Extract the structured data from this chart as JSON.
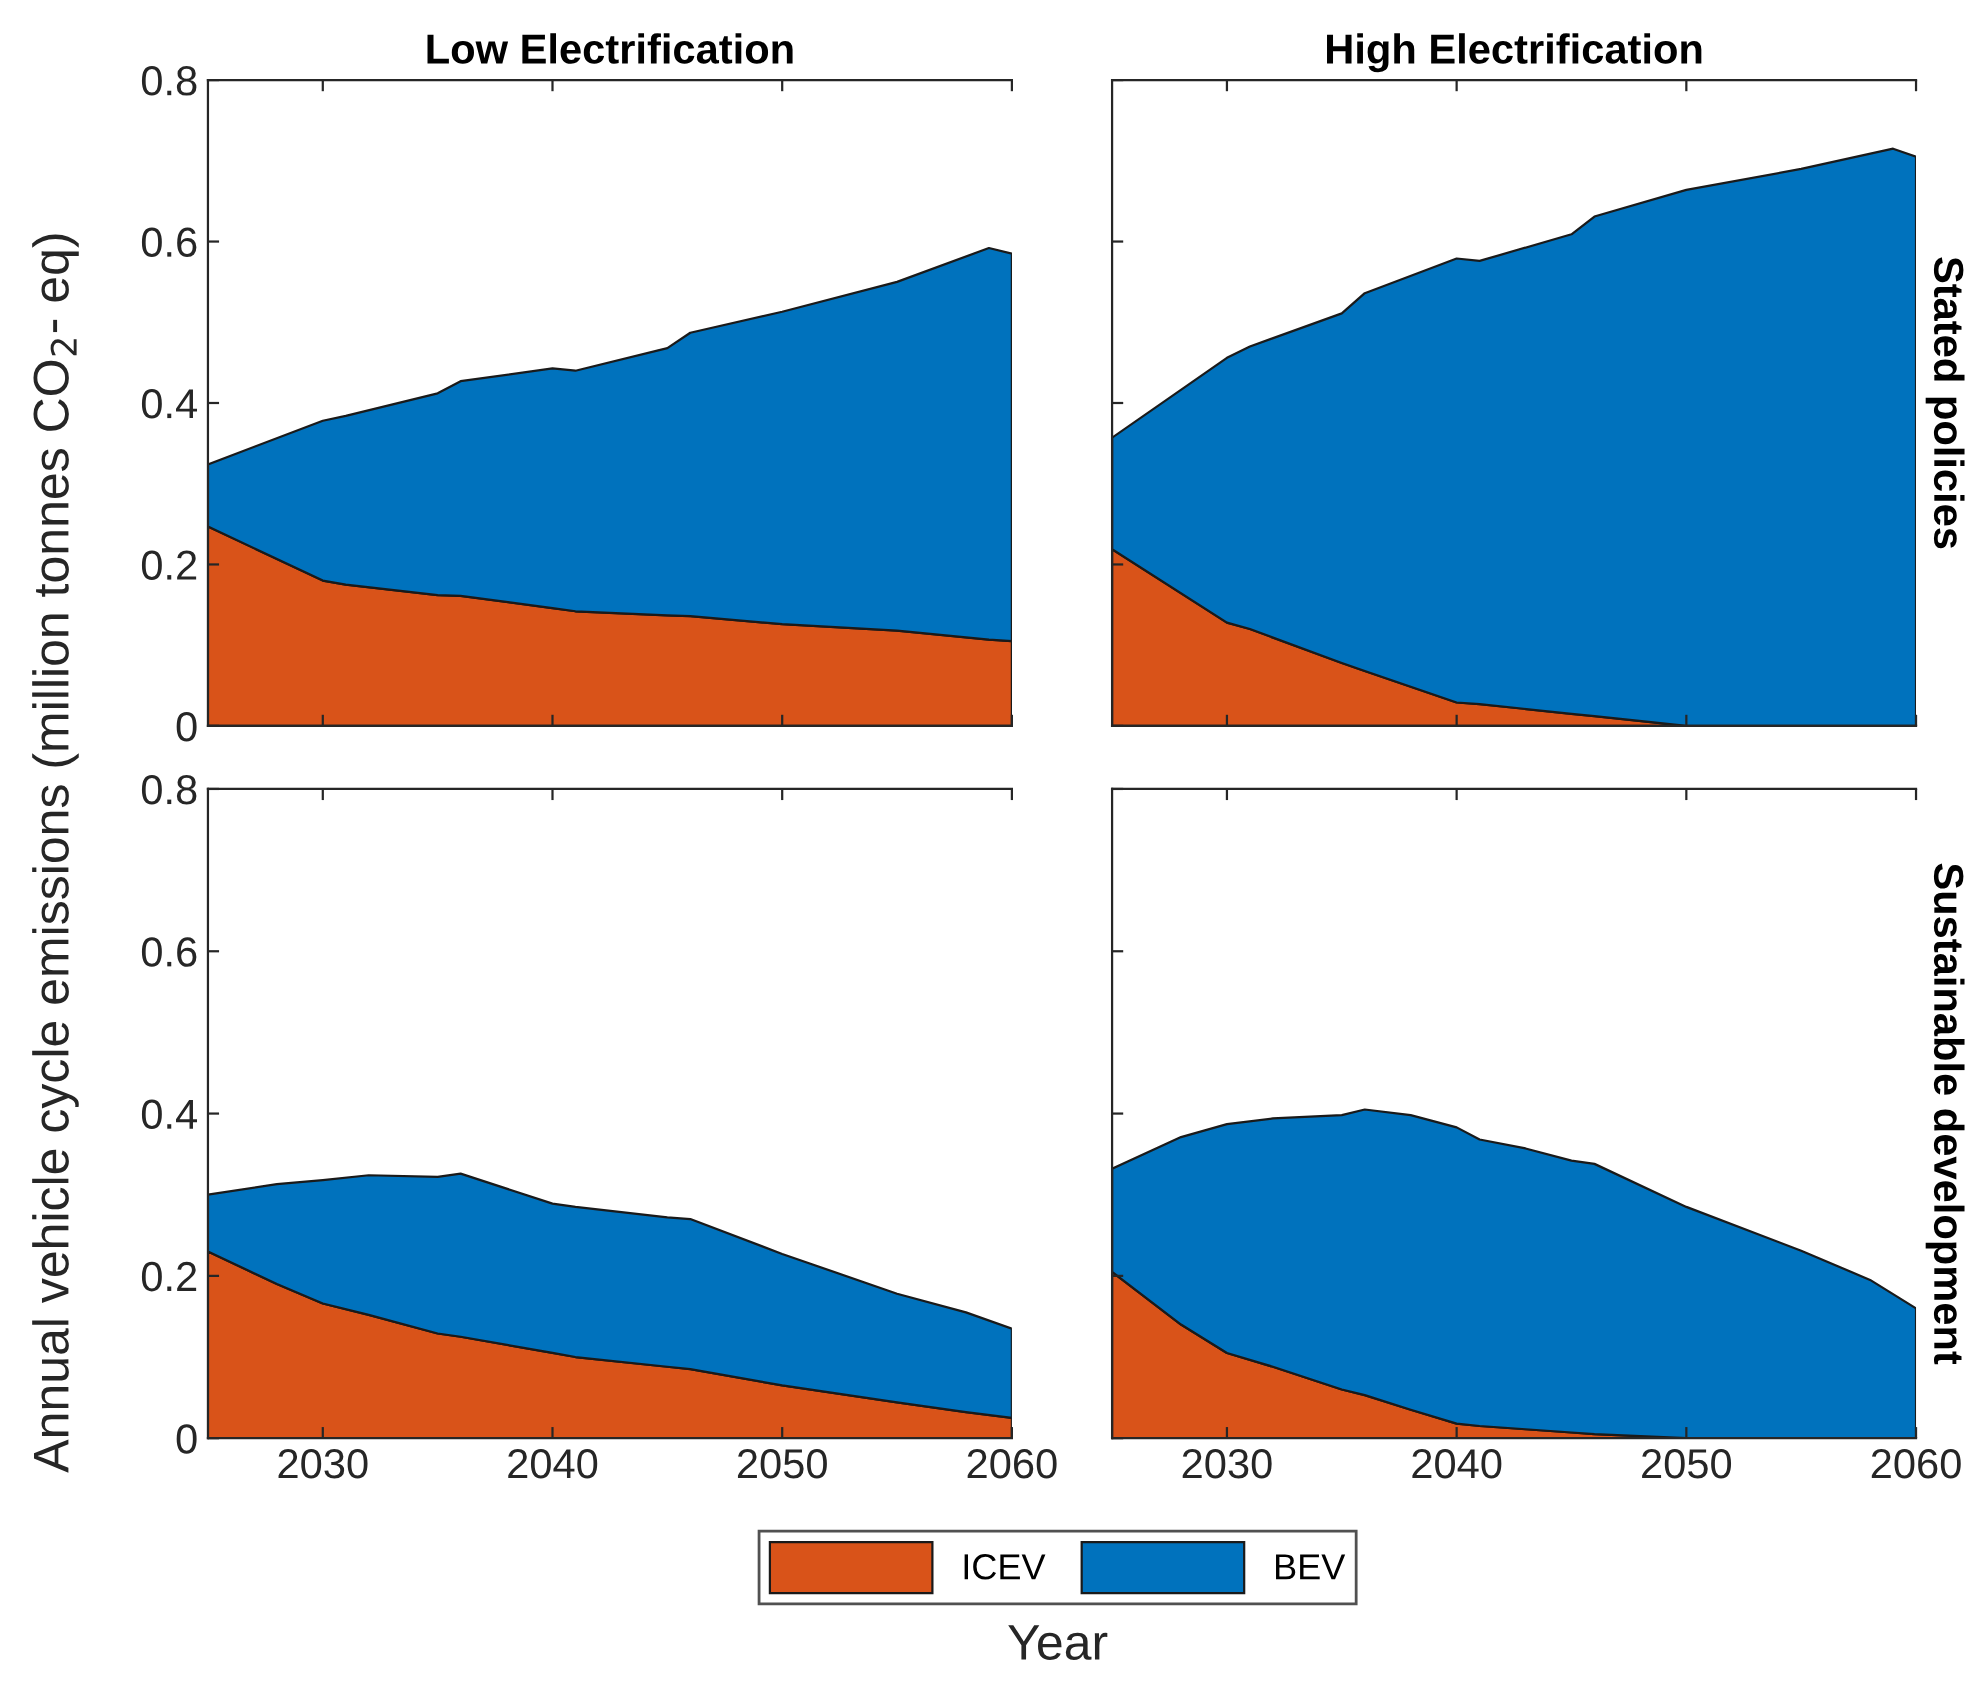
{
  "chart_data": [
    {
      "type": "area",
      "stacked": true,
      "title": "Low Electrification",
      "ylabel": "Annual vehicle cycle emissions (million tonnes CO$_{2}$- eq)",
      "legend": "bottom",
      "tick_labels": "y",
      "x": [
        2025,
        2030,
        2031,
        2035,
        2036,
        2040,
        2041,
        2045,
        2046,
        2050,
        2055,
        2059,
        2060
      ],
      "series": [
        {
          "name": "ICEV",
          "color": "#d95319",
          "values": [
            0.247,
            0.18,
            0.175,
            0.162,
            0.161,
            0.146,
            0.142,
            0.137,
            0.136,
            0.126,
            0.118,
            0.107,
            0.105
          ]
        },
        {
          "name": "BEV",
          "color": "#0072bd",
          "values": [
            0.077,
            0.198,
            0.209,
            0.25,
            0.266,
            0.297,
            0.298,
            0.331,
            0.351,
            0.387,
            0.432,
            0.485,
            0.48
          ]
        }
      ],
      "xlim": [
        2025,
        2060
      ],
      "ylim": [
        0,
        0.8
      ],
      "xticks": [
        2030,
        2040,
        2050,
        2060
      ],
      "yticks": [
        0,
        0.2,
        0.4,
        0.6,
        0.8
      ]
    },
    {
      "type": "area",
      "stacked": true,
      "title": "High Electrification",
      "y2label": "Stated policies",
      "tick_labels": false,
      "x": [
        2025,
        2030,
        2031,
        2035,
        2036,
        2040,
        2041,
        2045,
        2046,
        2050,
        2055,
        2059,
        2060
      ],
      "series": [
        {
          "color": "#d95319",
          "values": [
            0.219,
            0.128,
            0.12,
            0.078,
            0.068,
            0.029,
            0.027,
            0.015,
            0.012,
            0,
            0,
            0,
            0
          ]
        },
        {
          "color": "#0072bd",
          "values": [
            0.138,
            0.328,
            0.35,
            0.433,
            0.468,
            0.55,
            0.549,
            0.594,
            0.619,
            0.664,
            0.69,
            0.715,
            0.705
          ]
        }
      ],
      "xlim": [
        2025,
        2060
      ],
      "ylim": [
        0,
        0.8
      ],
      "xticks": [
        2030,
        2040,
        2050,
        2060
      ],
      "yticks": [
        0,
        0.2,
        0.4,
        0.6,
        0.8
      ]
    },
    {
      "type": "area",
      "stacked": true,
      "xlabel": "Year",
      "x": [
        2025,
        2028,
        2030,
        2032,
        2035,
        2036,
        2040,
        2041,
        2045,
        2046,
        2050,
        2055,
        2058,
        2060
      ],
      "series": [
        {
          "color": "#d95319",
          "values": [
            0.23,
            0.19,
            0.166,
            0.152,
            0.129,
            0.125,
            0.105,
            0.1,
            0.088,
            0.085,
            0.065,
            0.044,
            0.032,
            0.025
          ]
        },
        {
          "color": "#0072bd",
          "values": [
            0.07,
            0.123,
            0.152,
            0.172,
            0.193,
            0.201,
            0.184,
            0.185,
            0.184,
            0.185,
            0.162,
            0.134,
            0.123,
            0.11
          ]
        }
      ],
      "xlim": [
        2025,
        2060
      ],
      "ylim": [
        0,
        0.8
      ],
      "xticks": [
        2030,
        2040,
        2050,
        2060
      ],
      "yticks": [
        0,
        0.2,
        0.4,
        0.6,
        0.8
      ]
    },
    {
      "type": "area",
      "stacked": true,
      "y2label": "Sustainable development",
      "tick_labels": "x",
      "x": [
        2025,
        2028,
        2030,
        2032,
        2035,
        2036,
        2038,
        2040,
        2041,
        2043,
        2045,
        2046,
        2050,
        2055,
        2058,
        2060
      ],
      "series": [
        {
          "color": "#d95319",
          "values": [
            0.205,
            0.14,
            0.105,
            0.088,
            0.06,
            0.053,
            0.035,
            0.018,
            0.015,
            0.011,
            0.007,
            0.005,
            0,
            0,
            0,
            0
          ]
        },
        {
          "color": "#0072bd",
          "values": [
            0.127,
            0.231,
            0.282,
            0.306,
            0.338,
            0.352,
            0.363,
            0.365,
            0.353,
            0.346,
            0.335,
            0.333,
            0.285,
            0.231,
            0.195,
            0.16
          ]
        }
      ],
      "xlim": [
        2025,
        2060
      ],
      "ylim": [
        0,
        0.8
      ],
      "xticks": [
        2030,
        2040,
        2050,
        2060
      ],
      "yticks": [
        0,
        0.2,
        0.4,
        0.6,
        0.8
      ]
    }
  ]
}
